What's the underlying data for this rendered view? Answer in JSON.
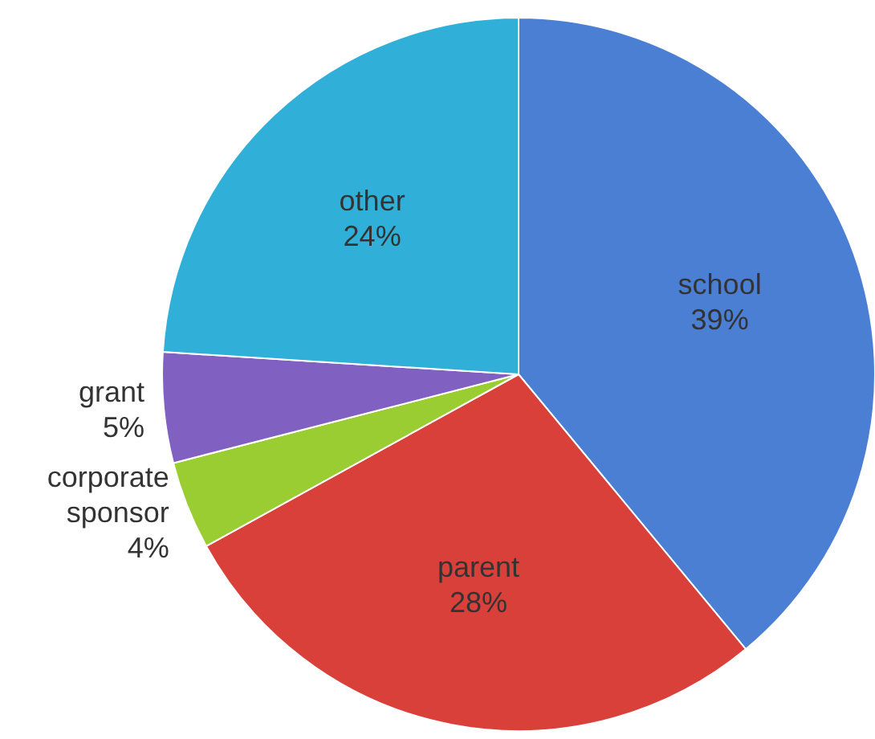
{
  "chart_data": {
    "type": "pie",
    "categories": [
      "school",
      "parent",
      "corporate sponsor",
      "grant",
      "other"
    ],
    "values": [
      39,
      28,
      4,
      5,
      24
    ],
    "value_labels": [
      "39%",
      "28%",
      "4%",
      "5%",
      "24%"
    ],
    "colors": [
      "#4a7fd4",
      "#d9403a",
      "#9acd32",
      "#8060c0",
      "#30b0d8"
    ],
    "legend": false
  }
}
